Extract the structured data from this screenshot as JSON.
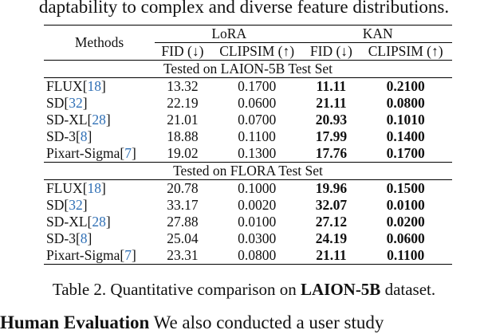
{
  "top_text": "daptability to complex and diverse feature distributions.",
  "table": {
    "methods_header": "Methods",
    "group_lora": "LoRA",
    "group_kan": "KAN",
    "metric_fid": "FID (↓)",
    "metric_clipsim": "CLIPSIM (↑)",
    "sections": [
      {
        "title": "Tested on LAION-5B Test Set",
        "rows": [
          {
            "name": "FLUX",
            "ref": "18",
            "lora_fid": "13.32",
            "lora_clip": "0.1700",
            "kan_fid": "11.11",
            "kan_clip": "0.2100"
          },
          {
            "name": "SD",
            "ref": "32",
            "lora_fid": "22.19",
            "lora_clip": "0.0600",
            "kan_fid": "21.11",
            "kan_clip": "0.0800"
          },
          {
            "name": "SD-XL",
            "ref": "28",
            "lora_fid": "21.01",
            "lora_clip": "0.0700",
            "kan_fid": "20.93",
            "kan_clip": "0.1010"
          },
          {
            "name": "SD-3",
            "ref": "8",
            "lora_fid": "18.88",
            "lora_clip": "0.1100",
            "kan_fid": "17.99",
            "kan_clip": "0.1400"
          },
          {
            "name": "Pixart-Sigma",
            "ref": "7",
            "lora_fid": "19.02",
            "lora_clip": "0.1300",
            "kan_fid": "17.76",
            "kan_clip": "0.1700"
          }
        ]
      },
      {
        "title": "Tested on FLORA Test Set",
        "rows": [
          {
            "name": "FLUX",
            "ref": "18",
            "lora_fid": "20.78",
            "lora_clip": "0.1000",
            "kan_fid": "19.96",
            "kan_clip": "0.1500"
          },
          {
            "name": "SD",
            "ref": "32",
            "lora_fid": "33.17",
            "lora_clip": "0.0020",
            "kan_fid": "32.07",
            "kan_clip": "0.0100"
          },
          {
            "name": "SD-XL",
            "ref": "28",
            "lora_fid": "27.88",
            "lora_clip": "0.0100",
            "kan_fid": "27.12",
            "kan_clip": "0.0200"
          },
          {
            "name": "SD-3",
            "ref": "8",
            "lora_fid": "25.04",
            "lora_clip": "0.0300",
            "kan_fid": "24.19",
            "kan_clip": "0.0600"
          },
          {
            "name": "Pixart-Sigma",
            "ref": "7",
            "lora_fid": "23.31",
            "lora_clip": "0.0800",
            "kan_fid": "21.11",
            "kan_clip": "0.1100"
          }
        ]
      }
    ]
  },
  "caption": {
    "prefix": "Table 2. Quantitative comparison on ",
    "bold": "LAION-5B",
    "suffix": " dataset."
  },
  "bottom_text": "Human Evaluation  We also conducted a user study"
}
